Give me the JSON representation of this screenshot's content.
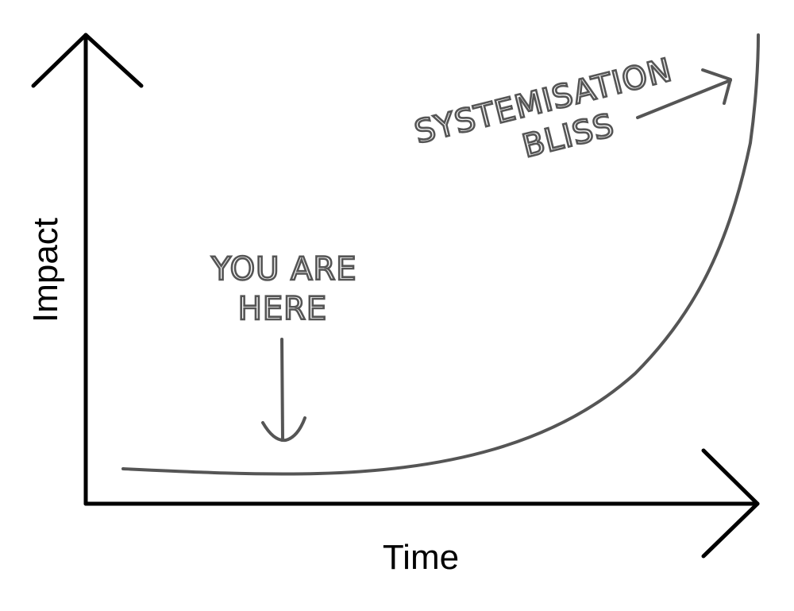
{
  "axes": {
    "y_label": "Impact",
    "x_label": "Time"
  },
  "annotations": {
    "you_are_here": [
      "YOU ARE",
      "HERE"
    ],
    "systemisation_bliss": [
      "SYSTEMISATION",
      "BLISS"
    ]
  },
  "colors": {
    "axis": "#000000",
    "curve": "#555555",
    "annotation": "#555555"
  }
}
